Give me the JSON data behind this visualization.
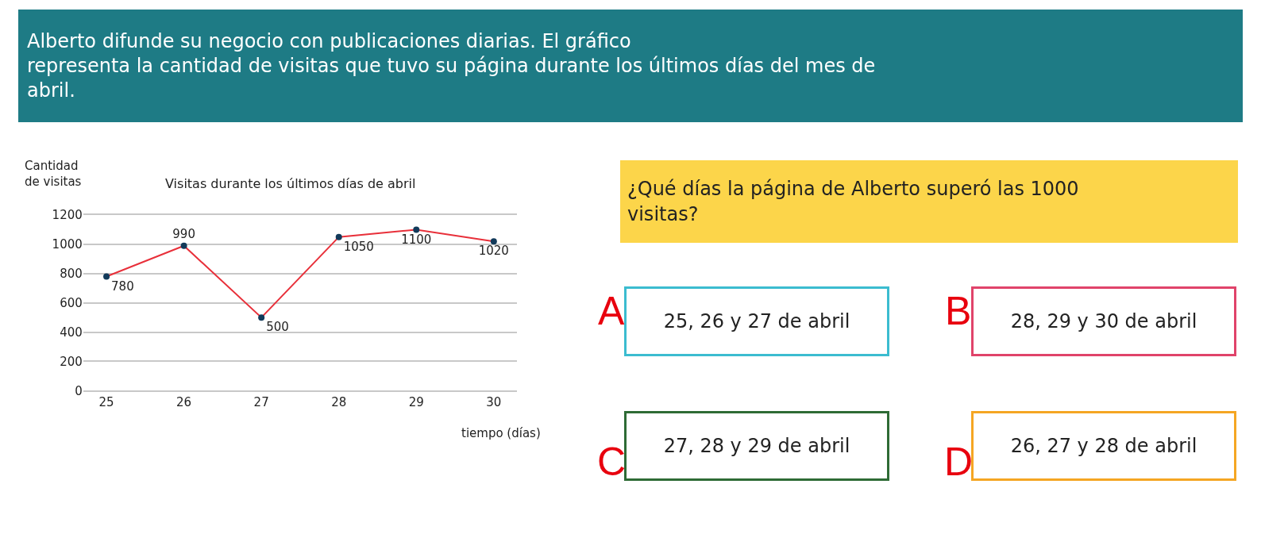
{
  "chart_data": {
    "type": "line",
    "title": "Visitas durante los últimos días de abril",
    "ylabel": "Cantidad\nde visitas",
    "xlabel": "tiempo (días)",
    "categories": [
      "25",
      "26",
      "27",
      "28",
      "29",
      "30"
    ],
    "series": [
      {
        "color": "#e8303a",
        "values": [
          780,
          990,
          500,
          1050,
          1100,
          1020
        ]
      }
    ],
    "ylim": [
      0,
      1200
    ],
    "yticks": [
      0,
      200,
      400,
      600,
      800,
      1000,
      1200
    ],
    "grid": "y",
    "marker": "circle",
    "data_labels": true,
    "annotations": [
      "Alberto difunde su negocio con publicaciones diarias. El gráfico\nrepresenta la cantidad de visitas que tuvo su página durante los últimos días del mes de\nabril.",
      "¿Qué días la página de Alberto superó las 1000\nvisitas?",
      "A",
      "25, 26 y 27 de abril",
      "B",
      "28, 29 y 30 de abril",
      "C",
      "27, 28 y 29 de abril",
      "D",
      "26, 27 y 28 de abril"
    ]
  }
}
